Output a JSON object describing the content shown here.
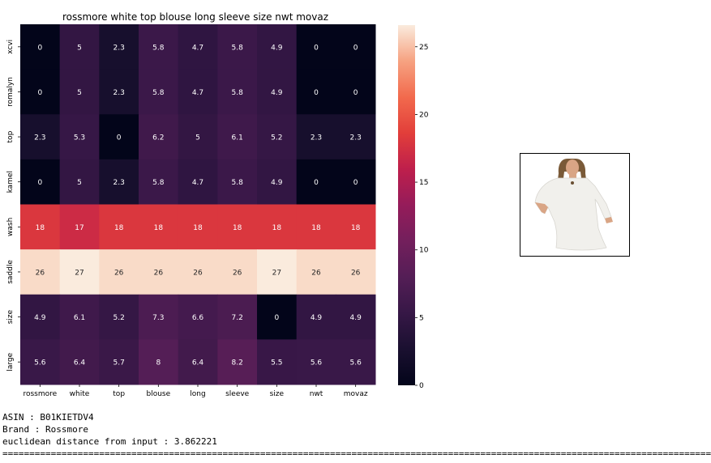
{
  "chart_data": {
    "type": "heatmap",
    "title": "rossmore white top blouse long sleeve size nwt  movaz",
    "x_categories": [
      "rossmore",
      "white",
      "top",
      "blouse",
      "long",
      "sleeve",
      "size",
      "nwt",
      "movaz"
    ],
    "y_categories": [
      "xcvi",
      "romalyn",
      "top",
      "kamel",
      "wash",
      "saddle",
      "size",
      "large"
    ],
    "values": [
      [
        0,
        5,
        2.3,
        5.8,
        4.7,
        5.8,
        4.9,
        0,
        0
      ],
      [
        0,
        5,
        2.3,
        5.8,
        4.7,
        5.8,
        4.9,
        0,
        0
      ],
      [
        2.3,
        5.3,
        0,
        6.2,
        5,
        6.1,
        5.2,
        2.3,
        2.3
      ],
      [
        0,
        5,
        2.3,
        5.8,
        4.7,
        5.8,
        4.9,
        0,
        0
      ],
      [
        18,
        17,
        18,
        18,
        18,
        18,
        18,
        18,
        18
      ],
      [
        26,
        27,
        26,
        26,
        26,
        26,
        27,
        26,
        26
      ],
      [
        4.9,
        6.1,
        5.2,
        7.3,
        6.6,
        7.2,
        0,
        4.9,
        4.9
      ],
      [
        5.6,
        6.4,
        5.7,
        8,
        6.4,
        8.2,
        5.5,
        5.6,
        5.6
      ]
    ],
    "value_labels": [
      [
        "0",
        "5",
        "2.3",
        "5.8",
        "4.7",
        "5.8",
        "4.9",
        "0",
        "0"
      ],
      [
        "0",
        "5",
        "2.3",
        "5.8",
        "4.7",
        "5.8",
        "4.9",
        "0",
        "0"
      ],
      [
        "2.3",
        "5.3",
        "0",
        "6.2",
        "5",
        "6.1",
        "5.2",
        "2.3",
        "2.3"
      ],
      [
        "0",
        "5",
        "2.3",
        "5.8",
        "4.7",
        "5.8",
        "4.9",
        "0",
        "0"
      ],
      [
        "18",
        "17",
        "18",
        "18",
        "18",
        "18",
        "18",
        "18",
        "18"
      ],
      [
        "26",
        "27",
        "26",
        "26",
        "26",
        "26",
        "27",
        "26",
        "26"
      ],
      [
        "4.9",
        "6.1",
        "5.2",
        "7.3",
        "6.6",
        "7.2",
        "0",
        "4.9",
        "4.9"
      ],
      [
        "5.6",
        "6.4",
        "5.7",
        "8",
        "6.4",
        "8.2",
        "5.5",
        "5.6",
        "5.6"
      ]
    ],
    "colorbar": {
      "ticks": [
        0,
        5,
        10,
        15,
        20,
        25
      ],
      "range": [
        0,
        26.6
      ],
      "colormap": "rocket"
    },
    "xlabel": "",
    "ylabel": ""
  },
  "output": {
    "asin_line": "ASIN : B01KIETDV4",
    "brand_line": "Brand : Rossmore",
    "distance_line": "euclidean distance from input : 3.862221",
    "separator": "===================================================================================================================================="
  },
  "image": {
    "subject": "woman in white long-sleeve blouse",
    "shirt_color": "#f1f0ec",
    "skin_color": "#d9a585",
    "hair_color": "#7a5a38"
  }
}
